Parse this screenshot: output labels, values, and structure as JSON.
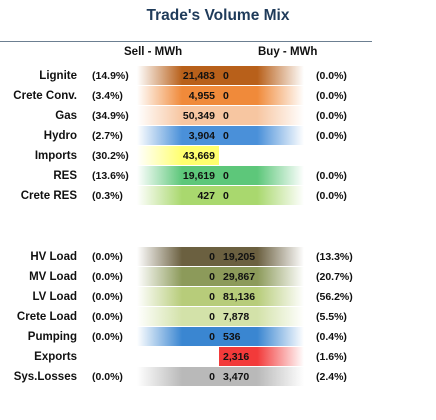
{
  "chart_data": {
    "type": "table",
    "title": "Trade's Volume Mix",
    "columns": [
      "Sell - MWh",
      "Buy - MWh"
    ],
    "rows": [
      {
        "label": "Lignite",
        "sell_pct": "(14.9%)",
        "sell": 21483,
        "sell_text": "21,483",
        "buy": 0,
        "buy_text": "0",
        "buy_pct": "(0.0%)",
        "color": "#b8601a"
      },
      {
        "label": "Crete Conv.",
        "sell_pct": "(3.4%)",
        "sell": 4955,
        "sell_text": "4,955",
        "buy": 0,
        "buy_text": "0",
        "buy_pct": "(0.0%)",
        "color": "#f08a3a"
      },
      {
        "label": "Gas",
        "sell_pct": "(34.9%)",
        "sell": 50349,
        "sell_text": "50,349",
        "buy": 0,
        "buy_text": "0",
        "buy_pct": "(0.0%)",
        "color": "#f7c6a1"
      },
      {
        "label": "Hydro",
        "sell_pct": "(2.7%)",
        "sell": 3904,
        "sell_text": "3,904",
        "buy": 0,
        "buy_text": "0",
        "buy_pct": "(0.0%)",
        "color": "#4a90d9"
      },
      {
        "label": "Imports",
        "sell_pct": "(30.2%)",
        "sell": 43669,
        "sell_text": "43,669",
        "buy": null,
        "buy_text": "",
        "buy_pct": "",
        "color": "#ffff6e"
      },
      {
        "label": "RES",
        "sell_pct": "(13.6%)",
        "sell": 19619,
        "sell_text": "19,619",
        "buy": 0,
        "buy_text": "0",
        "buy_pct": "(0.0%)",
        "color": "#5dc77a"
      },
      {
        "label": "Crete RES",
        "sell_pct": "(0.3%)",
        "sell": 427,
        "sell_text": "427",
        "buy": 0,
        "buy_text": "0",
        "buy_pct": "(0.0%)",
        "color": "#a9d86e"
      },
      {
        "label": "HV Load",
        "sell_pct": "(0.0%)",
        "sell": 0,
        "sell_text": "0",
        "buy": 19205,
        "buy_text": "19,205",
        "buy_pct": "(13.3%)",
        "color": "#6b6040"
      },
      {
        "label": "MV Load",
        "sell_pct": "(0.0%)",
        "sell": 0,
        "sell_text": "0",
        "buy": 29867,
        "buy_text": "29,867",
        "buy_pct": "(20.7%)",
        "color": "#8c9a5a"
      },
      {
        "label": "LV Load",
        "sell_pct": "(0.0%)",
        "sell": 0,
        "sell_text": "0",
        "buy": 81136,
        "buy_text": "81,136",
        "buy_pct": "(56.2%)",
        "color": "#b7cc7a"
      },
      {
        "label": "Crete Load",
        "sell_pct": "(0.0%)",
        "sell": 0,
        "sell_text": "0",
        "buy": 7878,
        "buy_text": "7,878",
        "buy_pct": "(5.5%)",
        "color": "#d3e2a9"
      },
      {
        "label": "Pumping",
        "sell_pct": "(0.0%)",
        "sell": 0,
        "sell_text": "0",
        "buy": 536,
        "buy_text": "536",
        "buy_pct": "(0.4%)",
        "color": "#3a86d1"
      },
      {
        "label": "Exports",
        "sell_pct": "",
        "sell": null,
        "sell_text": "",
        "buy": 2316,
        "buy_text": "2,316",
        "buy_pct": "(1.6%)",
        "color": "#f23a3a"
      },
      {
        "label": "Sys.Losses",
        "sell_pct": "(0.0%)",
        "sell": 0,
        "sell_text": "0",
        "buy": 3470,
        "buy_text": "3,470",
        "buy_pct": "(2.4%)",
        "color": "#b9b9b9"
      }
    ]
  }
}
